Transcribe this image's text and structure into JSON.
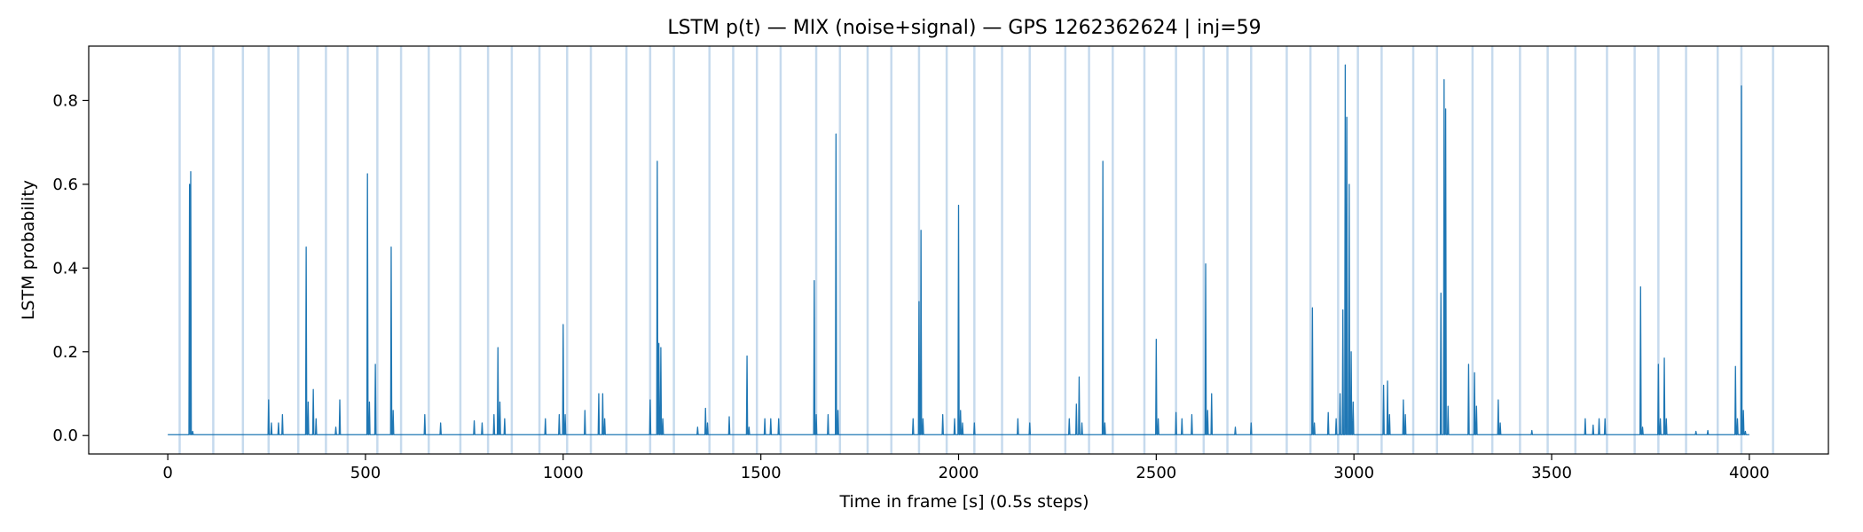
{
  "chart_data": {
    "type": "line",
    "title": "LSTM p(t) — MIX (noise+signal) — GPS 1262362624 | inj=59",
    "xlabel": "Time in frame [s] (0.5s steps)",
    "ylabel": "LSTM probability",
    "xlim": [
      -200,
      4200
    ],
    "ylim": [
      -0.044,
      0.93
    ],
    "xticks": [
      0,
      500,
      1000,
      1500,
      2000,
      2500,
      3000,
      3500,
      4000
    ],
    "yticks": [
      0.0,
      0.2,
      0.4,
      0.6,
      0.8
    ],
    "grid": false,
    "line_color": "#1f77b4",
    "band_color": "#aecbe6",
    "injection_count": 59,
    "injection_times": [
      30,
      115,
      190,
      255,
      330,
      400,
      455,
      530,
      590,
      660,
      740,
      810,
      870,
      940,
      1010,
      1070,
      1160,
      1220,
      1280,
      1370,
      1430,
      1490,
      1550,
      1640,
      1700,
      1770,
      1830,
      1900,
      1970,
      2040,
      2110,
      2180,
      2270,
      2330,
      2390,
      2470,
      2550,
      2620,
      2680,
      2740,
      2830,
      2890,
      2960,
      3010,
      3070,
      3150,
      3210,
      3300,
      3350,
      3420,
      3490,
      3560,
      3640,
      3710,
      3770,
      3840,
      3920,
      3980,
      4060
    ],
    "baseline": 0.002,
    "peaks": [
      [
        55,
        0.6
      ],
      [
        58,
        0.63
      ],
      [
        63,
        0.01
      ],
      [
        255,
        0.085
      ],
      [
        262,
        0.03
      ],
      [
        280,
        0.03
      ],
      [
        290,
        0.05
      ],
      [
        350,
        0.45
      ],
      [
        355,
        0.08
      ],
      [
        368,
        0.11
      ],
      [
        375,
        0.04
      ],
      [
        425,
        0.02
      ],
      [
        435,
        0.085
      ],
      [
        505,
        0.625
      ],
      [
        510,
        0.08
      ],
      [
        525,
        0.17
      ],
      [
        565,
        0.45
      ],
      [
        570,
        0.06
      ],
      [
        650,
        0.05
      ],
      [
        690,
        0.03
      ],
      [
        775,
        0.035
      ],
      [
        795,
        0.03
      ],
      [
        825,
        0.05
      ],
      [
        835,
        0.21
      ],
      [
        840,
        0.08
      ],
      [
        852,
        0.04
      ],
      [
        955,
        0.04
      ],
      [
        990,
        0.05
      ],
      [
        1000,
        0.265
      ],
      [
        1005,
        0.05
      ],
      [
        1055,
        0.06
      ],
      [
        1090,
        0.1
      ],
      [
        1100,
        0.1
      ],
      [
        1105,
        0.04
      ],
      [
        1220,
        0.085
      ],
      [
        1238,
        0.655
      ],
      [
        1242,
        0.22
      ],
      [
        1247,
        0.21
      ],
      [
        1252,
        0.04
      ],
      [
        1340,
        0.02
      ],
      [
        1360,
        0.065
      ],
      [
        1365,
        0.03
      ],
      [
        1420,
        0.045
      ],
      [
        1465,
        0.19
      ],
      [
        1470,
        0.02
      ],
      [
        1510,
        0.04
      ],
      [
        1525,
        0.04
      ],
      [
        1545,
        0.04
      ],
      [
        1635,
        0.37
      ],
      [
        1640,
        0.05
      ],
      [
        1670,
        0.05
      ],
      [
        1690,
        0.72
      ],
      [
        1695,
        0.06
      ],
      [
        1885,
        0.04
      ],
      [
        1900,
        0.32
      ],
      [
        1905,
        0.49
      ],
      [
        1910,
        0.04
      ],
      [
        1960,
        0.05
      ],
      [
        1990,
        0.04
      ],
      [
        2000,
        0.55
      ],
      [
        2005,
        0.06
      ],
      [
        2010,
        0.03
      ],
      [
        2040,
        0.03
      ],
      [
        2150,
        0.04
      ],
      [
        2180,
        0.03
      ],
      [
        2280,
        0.04
      ],
      [
        2298,
        0.075
      ],
      [
        2305,
        0.14
      ],
      [
        2312,
        0.03
      ],
      [
        2365,
        0.655
      ],
      [
        2370,
        0.03
      ],
      [
        2500,
        0.23
      ],
      [
        2505,
        0.04
      ],
      [
        2550,
        0.055
      ],
      [
        2565,
        0.04
      ],
      [
        2590,
        0.05
      ],
      [
        2625,
        0.41
      ],
      [
        2630,
        0.06
      ],
      [
        2640,
        0.1
      ],
      [
        2700,
        0.02
      ],
      [
        2740,
        0.03
      ],
      [
        2895,
        0.305
      ],
      [
        2900,
        0.03
      ],
      [
        2935,
        0.055
      ],
      [
        2955,
        0.04
      ],
      [
        2965,
        0.1
      ],
      [
        2972,
        0.3
      ],
      [
        2978,
        0.885
      ],
      [
        2982,
        0.76
      ],
      [
        2988,
        0.6
      ],
      [
        2993,
        0.2
      ],
      [
        2998,
        0.08
      ],
      [
        3075,
        0.12
      ],
      [
        3085,
        0.13
      ],
      [
        3090,
        0.05
      ],
      [
        3125,
        0.085
      ],
      [
        3130,
        0.05
      ],
      [
        3220,
        0.34
      ],
      [
        3228,
        0.85
      ],
      [
        3232,
        0.78
      ],
      [
        3238,
        0.07
      ],
      [
        3290,
        0.17
      ],
      [
        3305,
        0.15
      ],
      [
        3310,
        0.07
      ],
      [
        3365,
        0.085
      ],
      [
        3370,
        0.03
      ],
      [
        3450,
        0.012
      ],
      [
        3585,
        0.04
      ],
      [
        3605,
        0.025
      ],
      [
        3620,
        0.04
      ],
      [
        3635,
        0.04
      ],
      [
        3725,
        0.355
      ],
      [
        3730,
        0.02
      ],
      [
        3770,
        0.17
      ],
      [
        3775,
        0.04
      ],
      [
        3785,
        0.185
      ],
      [
        3790,
        0.04
      ],
      [
        3865,
        0.01
      ],
      [
        3895,
        0.012
      ],
      [
        3965,
        0.165
      ],
      [
        3970,
        0.04
      ],
      [
        3980,
        0.835
      ],
      [
        3985,
        0.06
      ],
      [
        3990,
        0.01
      ]
    ]
  }
}
